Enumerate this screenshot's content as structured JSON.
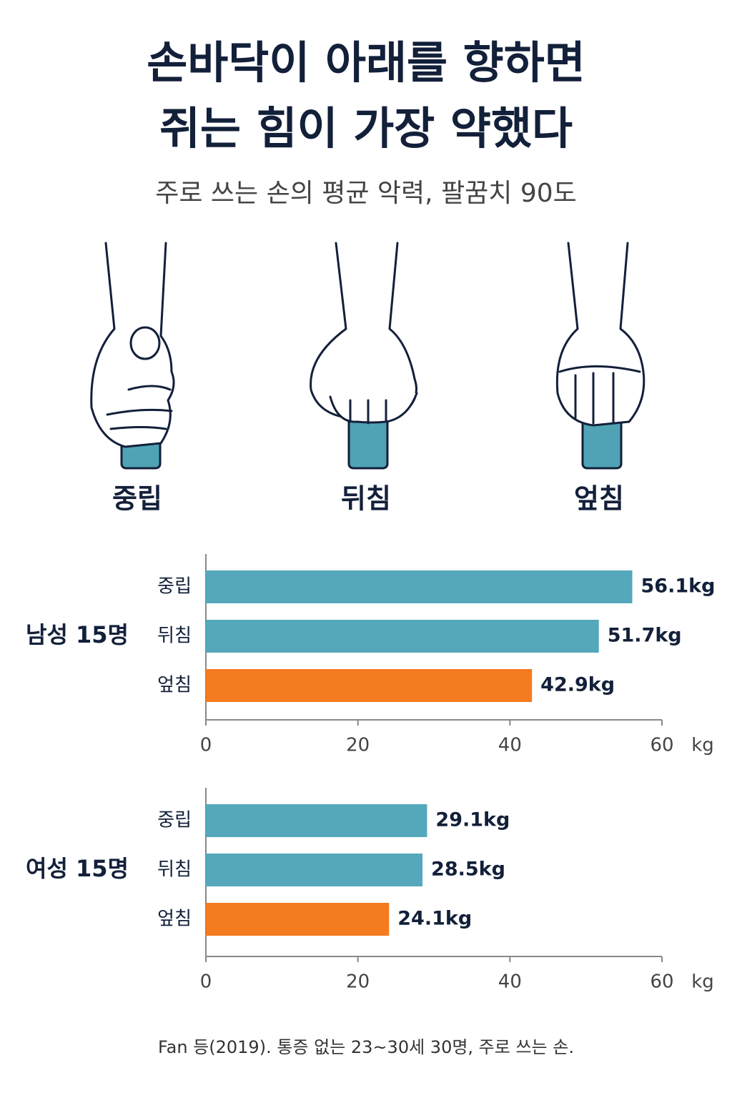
{
  "title": [
    "손바닥이 아래를 향하면",
    "쥐는 힘이 가장 약했다"
  ],
  "subtitle": "주로 쓰는 손의 평균 악력, 팔꿈치 90도",
  "grips": [
    "중립",
    "뒤침",
    "엎침"
  ],
  "chart_data": [
    {
      "type": "bar",
      "orientation": "horizontal",
      "group_label": "남성 15명",
      "categories": [
        "중립",
        "뒤침",
        "엎침"
      ],
      "values": [
        56.1,
        51.7,
        42.9
      ],
      "value_labels": [
        "56.1kg",
        "51.7kg",
        "42.9kg"
      ],
      "colors": [
        "#55a8bb",
        "#55a8bb",
        "#f47b20"
      ],
      "xlim": [
        0,
        60
      ],
      "xticks": [
        0,
        20,
        40,
        60
      ],
      "x_label": "kg"
    },
    {
      "type": "bar",
      "orientation": "horizontal",
      "group_label": "여성 15명",
      "categories": [
        "중립",
        "뒤침",
        "엎침"
      ],
      "values": [
        29.1,
        28.5,
        24.1
      ],
      "value_labels": [
        "29.1kg",
        "28.5kg",
        "24.1kg"
      ],
      "colors": [
        "#55a8bb",
        "#55a8bb",
        "#f47b20"
      ],
      "xlim": [
        0,
        60
      ],
      "xticks": [
        0,
        20,
        40,
        60
      ],
      "x_label": "kg"
    }
  ],
  "source": "Fan 등(2019). 통증 없는 23~30세 30명, 주로 쓰는 손."
}
